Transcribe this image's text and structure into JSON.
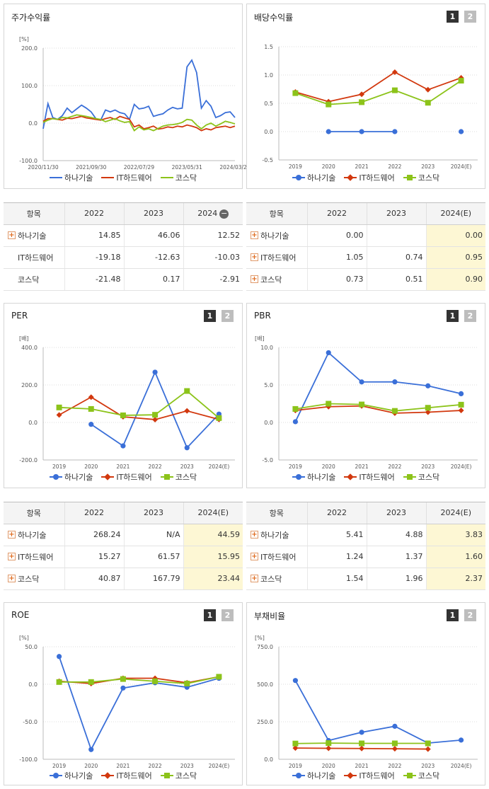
{
  "colors": {
    "hana": "#3a6fd8",
    "it": "#d2380e",
    "kosdaq": "#8cc31a"
  },
  "legend": [
    "하나기술",
    "IT하드웨어",
    "코스닥"
  ],
  "segments": [
    "1",
    "2"
  ],
  "charts": {
    "price": {
      "title": "주가수익률",
      "unit": "[%]",
      "chart_data": {
        "type": "line",
        "title": "주가수익률",
        "ylabel": "[%]",
        "ylim": [
          -100,
          200
        ],
        "yticks": [
          "200.0",
          "100.0",
          "0.0",
          "-100.0"
        ],
        "xticks": [
          "2020/11/30",
          "2021/09/30",
          "2022/07/29",
          "2023/05/31",
          "2024/03/29"
        ],
        "series": [
          {
            "name": "하나기술",
            "values": [
              -15,
              52,
              15,
              10,
              20,
              40,
              28,
              38,
              48,
              40,
              30,
              12,
              8,
              35,
              30,
              35,
              28,
              25,
              10,
              50,
              38,
              40,
              45,
              18,
              22,
              25,
              35,
              42,
              38,
              40,
              150,
              168,
              135,
              40,
              60,
              45,
              15,
              20,
              28,
              30,
              15
            ]
          },
          {
            "name": "IT하드웨어",
            "values": [
              5,
              12,
              12,
              10,
              8,
              13,
              12,
              15,
              18,
              14,
              12,
              10,
              8,
              12,
              15,
              10,
              18,
              14,
              10,
              -10,
              -5,
              -15,
              -12,
              -8,
              -16,
              -14,
              -10,
              -12,
              -8,
              -10,
              -5,
              -8,
              -12,
              -20,
              -15,
              -18,
              -12,
              -10,
              -8,
              -12,
              -8
            ]
          },
          {
            "name": "코스닥",
            "values": [
              2,
              8,
              12,
              10,
              15,
              14,
              18,
              22,
              20,
              18,
              15,
              12,
              10,
              4,
              8,
              12,
              6,
              2,
              4,
              -20,
              -10,
              -18,
              -15,
              -20,
              -14,
              -8,
              -5,
              -4,
              -2,
              2,
              10,
              8,
              -5,
              -15,
              -5,
              0,
              -8,
              -2,
              5,
              2,
              -2
            ]
          }
        ]
      }
    },
    "div": {
      "title": "배당수익률",
      "chart_data": {
        "type": "line",
        "title": "배당수익률",
        "ylim": [
          -0.5,
          1.5
        ],
        "yticks": [
          "1.5",
          "1.0",
          "0.5",
          "0.0",
          "-0.5"
        ],
        "categories": [
          "2019",
          "2020",
          "2021",
          "2022",
          "2023",
          "2024(E)"
        ],
        "series": [
          {
            "name": "하나기술",
            "values": [
              null,
              0.0,
              0.0,
              0.0,
              null,
              0.0
            ]
          },
          {
            "name": "IT하드웨어",
            "values": [
              0.7,
              0.53,
              0.66,
              1.05,
              0.74,
              0.95
            ]
          },
          {
            "name": "코스닥",
            "values": [
              0.68,
              0.48,
              0.52,
              0.73,
              0.51,
              0.9
            ]
          }
        ]
      }
    },
    "per": {
      "title": "PER",
      "unit": "[배]",
      "chart_data": {
        "type": "line",
        "title": "PER",
        "ylabel": "[배]",
        "ylim": [
          -200,
          400
        ],
        "yticks": [
          "400.0",
          "200.0",
          "0.0",
          "-200.0"
        ],
        "categories": [
          "2019",
          "2020",
          "2021",
          "2022",
          "2023",
          "2024(E)"
        ],
        "series": [
          {
            "name": "하나기술",
            "values": [
              null,
              -10,
              -125,
              268.24,
              -135,
              44.59
            ]
          },
          {
            "name": "IT하드웨어",
            "values": [
              40,
              135,
              30,
              15.27,
              61.57,
              15.95
            ]
          },
          {
            "name": "코스닥",
            "values": [
              80,
              72,
              38,
              40.87,
              167.79,
              23.44
            ]
          }
        ]
      }
    },
    "pbr": {
      "title": "PBR",
      "unit": "[배]",
      "chart_data": {
        "type": "line",
        "title": "PBR",
        "ylabel": "[배]",
        "ylim": [
          -5,
          10
        ],
        "yticks": [
          "10.0",
          "5.0",
          "0.0",
          "-5.0"
        ],
        "categories": [
          "2019",
          "2020",
          "2021",
          "2022",
          "2023",
          "2024(E)"
        ],
        "series": [
          {
            "name": "하나기술",
            "values": [
              0.1,
              9.3,
              5.4,
              5.41,
              4.88,
              3.83
            ]
          },
          {
            "name": "IT하드웨어",
            "values": [
              1.6,
              2.1,
              2.2,
              1.24,
              1.37,
              1.6
            ]
          },
          {
            "name": "코스닥",
            "values": [
              1.8,
              2.5,
              2.4,
              1.54,
              1.96,
              2.37
            ]
          }
        ]
      }
    },
    "roe": {
      "title": "ROE",
      "unit": "[%]",
      "chart_data": {
        "type": "line",
        "title": "ROE",
        "ylabel": "[%]",
        "ylim": [
          -100,
          50
        ],
        "yticks": [
          "50.0",
          "0.0",
          "-50.0",
          "-100.0"
        ],
        "categories": [
          "2019",
          "2020",
          "2021",
          "2022",
          "2023",
          "2024(E)"
        ],
        "series": [
          {
            "name": "하나기술",
            "values": [
              37,
              -87,
              -5,
              2,
              -4,
              8
            ]
          },
          {
            "name": "IT하드웨어",
            "values": [
              4,
              1,
              8,
              8,
              2,
              10
            ]
          },
          {
            "name": "코스닥",
            "values": [
              3,
              3,
              7,
              4,
              1,
              10
            ]
          }
        ]
      }
    },
    "debt": {
      "title": "부채비율",
      "unit": "[%]",
      "chart_data": {
        "type": "line",
        "title": "부채비율",
        "ylabel": "[%]",
        "ylim": [
          0,
          750
        ],
        "yticks": [
          "750.0",
          "500.0",
          "250.0",
          "0.0"
        ],
        "categories": [
          "2019",
          "2020",
          "2021",
          "2022",
          "2023",
          "2024(E)"
        ],
        "series": [
          {
            "name": "하나기술",
            "values": [
              525,
              125,
              180,
              220,
              108,
              128
            ]
          },
          {
            "name": "IT하드웨어",
            "values": [
              75,
              73,
              72,
              70,
              68,
              null
            ]
          },
          {
            "name": "코스닥",
            "values": [
              105,
              108,
              106,
              106,
              106,
              null
            ]
          }
        ]
      }
    }
  },
  "tables": {
    "price": {
      "header": [
        "항목",
        "2022",
        "2023",
        "2024"
      ],
      "rows": [
        {
          "name": "하나기술",
          "plus": true,
          "values": [
            "14.85",
            "46.06",
            "12.52"
          ]
        },
        {
          "name": "IT하드웨어",
          "plus": false,
          "values": [
            "-19.18",
            "-12.63",
            "-10.03"
          ]
        },
        {
          "name": "코스닥",
          "plus": false,
          "values": [
            "-21.48",
            "0.17",
            "-2.91"
          ]
        }
      ]
    },
    "div": {
      "header": [
        "항목",
        "2022",
        "2023",
        "2024(E)"
      ],
      "rows": [
        {
          "name": "하나기술",
          "plus": true,
          "values": [
            "0.00",
            "",
            "0.00"
          ]
        },
        {
          "name": "IT하드웨어",
          "plus": true,
          "values": [
            "1.05",
            "0.74",
            "0.95"
          ]
        },
        {
          "name": "코스닥",
          "plus": true,
          "values": [
            "0.73",
            "0.51",
            "0.90"
          ]
        }
      ]
    },
    "per": {
      "header": [
        "항목",
        "2022",
        "2023",
        "2024(E)"
      ],
      "rows": [
        {
          "name": "하나기술",
          "plus": true,
          "values": [
            "268.24",
            "N/A",
            "44.59"
          ]
        },
        {
          "name": "IT하드웨어",
          "plus": true,
          "values": [
            "15.27",
            "61.57",
            "15.95"
          ]
        },
        {
          "name": "코스닥",
          "plus": true,
          "values": [
            "40.87",
            "167.79",
            "23.44"
          ]
        }
      ]
    },
    "pbr": {
      "header": [
        "항목",
        "2022",
        "2023",
        "2024(E)"
      ],
      "rows": [
        {
          "name": "하나기술",
          "plus": true,
          "values": [
            "5.41",
            "4.88",
            "3.83"
          ]
        },
        {
          "name": "IT하드웨어",
          "plus": true,
          "values": [
            "1.24",
            "1.37",
            "1.60"
          ]
        },
        {
          "name": "코스닥",
          "plus": true,
          "values": [
            "1.54",
            "1.96",
            "2.37"
          ]
        }
      ]
    }
  }
}
